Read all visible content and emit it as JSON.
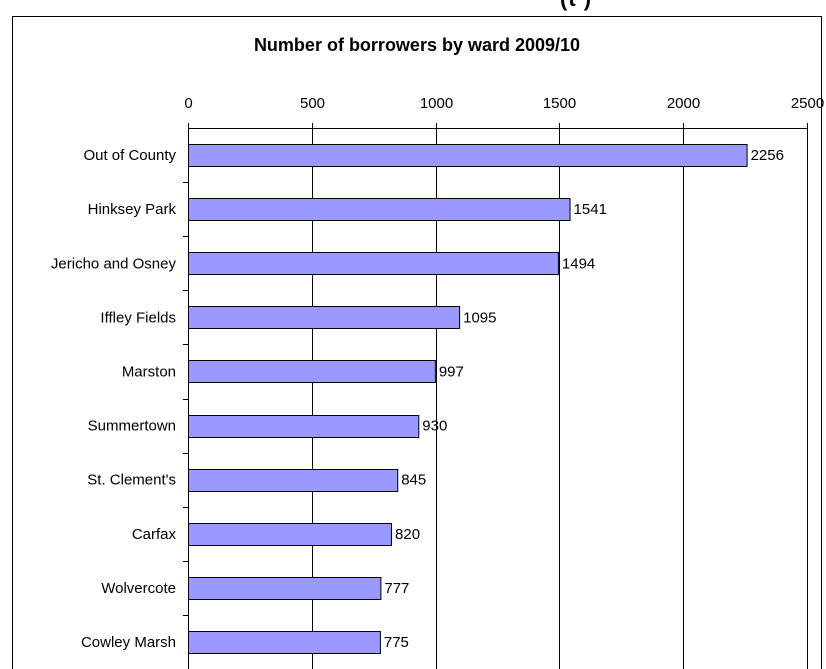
{
  "header_fragment": "(t   )",
  "chart_data": {
    "type": "bar",
    "orientation": "horizontal",
    "title": "Number of borrowers by ward 2009/10",
    "xlabel": "",
    "ylabel": "",
    "xlim": [
      0,
      2500
    ],
    "xticks": [
      0,
      500,
      1000,
      1500,
      2000,
      2500
    ],
    "grid": true,
    "legend": "none",
    "bar_color": "#9999ff",
    "categories": [
      "Out of County",
      "Hinksey Park",
      "Jericho and Osney",
      "Iffley Fields",
      "Marston",
      "Summertown",
      "St. Clement's",
      "Carfax",
      "Wolvercote",
      "Cowley Marsh"
    ],
    "values": [
      2256,
      1541,
      1494,
      1095,
      997,
      930,
      845,
      820,
      777,
      775
    ]
  }
}
